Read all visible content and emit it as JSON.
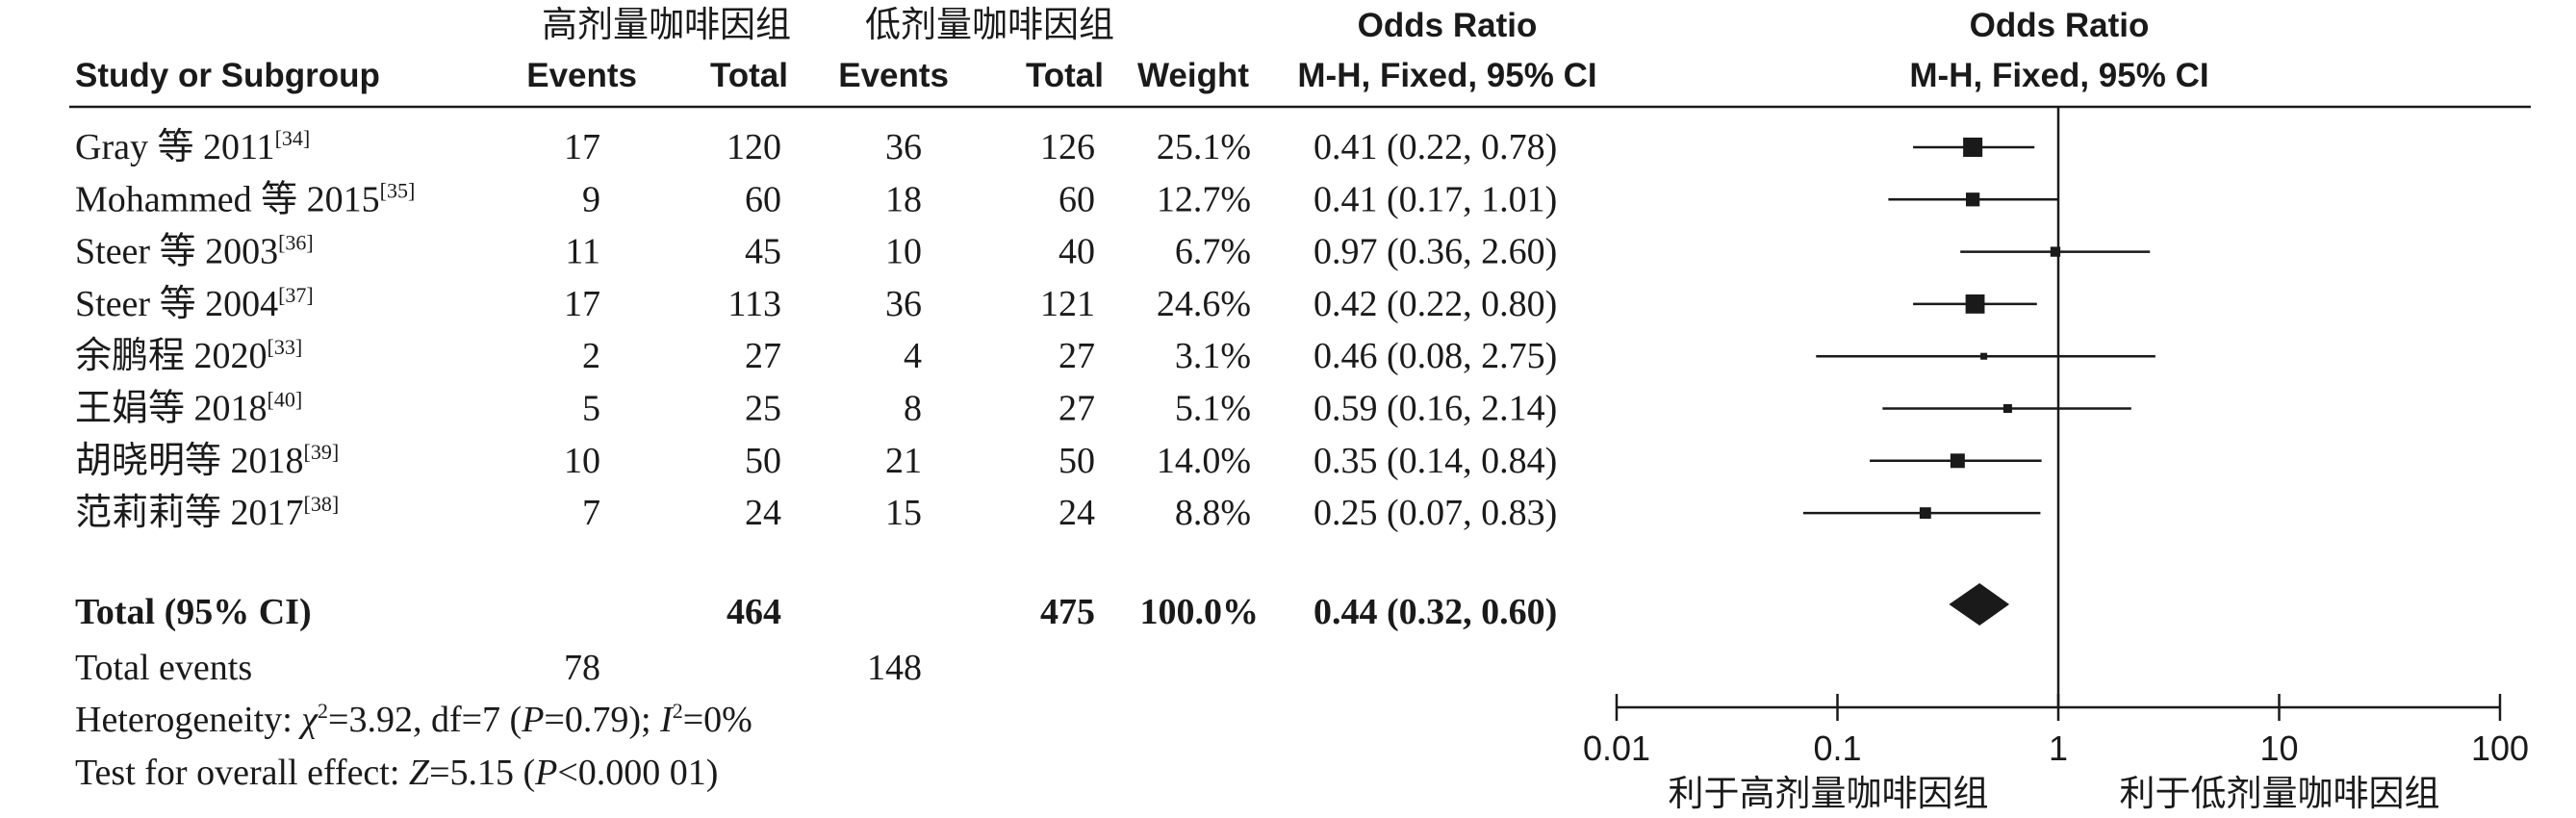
{
  "header": {
    "group_high": "高剂量咖啡因组",
    "group_low": "低剂量咖啡因组",
    "study_col": "Study or Subgroup",
    "events": "Events",
    "total": "Total",
    "weight": "Weight",
    "or_title": "Odds Ratio",
    "or_method": "M-H, Fixed, 95% CI",
    "plot_title": "Odds Ratio",
    "plot_method": "M-H, Fixed, 95% CI"
  },
  "chart_data": {
    "type": "forest",
    "x_scale": "log",
    "x_range": [
      0.01,
      100
    ],
    "x_ticks": [
      {
        "value": 0.01,
        "label": "0.01"
      },
      {
        "value": 0.1,
        "label": "0.1"
      },
      {
        "value": 1,
        "label": "1"
      },
      {
        "value": 10,
        "label": "10"
      },
      {
        "value": 100,
        "label": "100"
      }
    ],
    "null_line": 1,
    "favours_left": "利于高剂量咖啡因组",
    "favours_right": "利于低剂量咖啡因组",
    "studies": [
      {
        "name": "Gray 等 2011",
        "ref": "[34]",
        "events_high": "17",
        "total_high": "120",
        "events_low": "36",
        "total_low": "126",
        "weight": "25.1%",
        "or_text": "0.41 (0.22, 0.78)",
        "or": 0.41,
        "lo": 0.22,
        "hi": 0.78,
        "w": 25.1
      },
      {
        "name": "Mohammed 等 2015",
        "ref": "[35]",
        "events_high": "9",
        "total_high": "60",
        "events_low": "18",
        "total_low": "60",
        "weight": "12.7%",
        "or_text": "0.41 (0.17, 1.01)",
        "or": 0.41,
        "lo": 0.17,
        "hi": 1.01,
        "w": 12.7
      },
      {
        "name": "Steer 等 2003",
        "ref": "[36]",
        "events_high": "11",
        "total_high": "45",
        "events_low": "10",
        "total_low": "40",
        "weight": "6.7%",
        "or_text": "0.97 (0.36, 2.60)",
        "or": 0.97,
        "lo": 0.36,
        "hi": 2.6,
        "w": 6.7
      },
      {
        "name": "Steer 等 2004",
        "ref": "[37]",
        "events_high": "17",
        "total_high": "113",
        "events_low": "36",
        "total_low": "121",
        "weight": "24.6%",
        "or_text": "0.42 (0.22, 0.80)",
        "or": 0.42,
        "lo": 0.22,
        "hi": 0.8,
        "w": 24.6
      },
      {
        "name": "余鹏程 2020",
        "ref": "[33]",
        "events_high": "2",
        "total_high": "27",
        "events_low": "4",
        "total_low": "27",
        "weight": "3.1%",
        "or_text": "0.46 (0.08, 2.75)",
        "or": 0.46,
        "lo": 0.08,
        "hi": 2.75,
        "w": 3.1
      },
      {
        "name": "王娟等 2018",
        "ref": "[40]",
        "events_high": "5",
        "total_high": "25",
        "events_low": "8",
        "total_low": "27",
        "weight": "5.1%",
        "or_text": "0.59 (0.16, 2.14)",
        "or": 0.59,
        "lo": 0.16,
        "hi": 2.14,
        "w": 5.1
      },
      {
        "name": "胡晓明等 2018",
        "ref": "[39]",
        "events_high": "10",
        "total_high": "50",
        "events_low": "21",
        "total_low": "50",
        "weight": "14.0%",
        "or_text": "0.35 (0.14, 0.84)",
        "or": 0.35,
        "lo": 0.14,
        "hi": 0.84,
        "w": 14.0
      },
      {
        "name": "范莉莉等 2017",
        "ref": "[38]",
        "events_high": "7",
        "total_high": "24",
        "events_low": "15",
        "total_low": "24",
        "weight": "8.8%",
        "or_text": "0.25 (0.07, 0.83)",
        "or": 0.25,
        "lo": 0.07,
        "hi": 0.83,
        "w": 8.8
      }
    ],
    "total": {
      "label": "Total (95% CI)",
      "total_high": "464",
      "total_low": "475",
      "weight": "100.0%",
      "or_text": "0.44 (0.32, 0.60)",
      "or": 0.44,
      "lo": 0.32,
      "hi": 0.6
    },
    "total_events": {
      "label": "Total events",
      "high": "78",
      "low": "148"
    },
    "heterogeneity": {
      "prefix": "Heterogeneity: ",
      "chi_symbol": "χ",
      "chi_value": "=3.92, df=7 (",
      "p_symbol": "P",
      "p_value": "=0.79); ",
      "i_symbol": "I",
      "i_value": "=0%"
    },
    "overall_effect": {
      "prefix": "Test for overall effect: ",
      "z_symbol": "Z",
      "z_value": "=5.15 (",
      "p_symbol": "P",
      "p_value": "<0.000 01)"
    }
  }
}
